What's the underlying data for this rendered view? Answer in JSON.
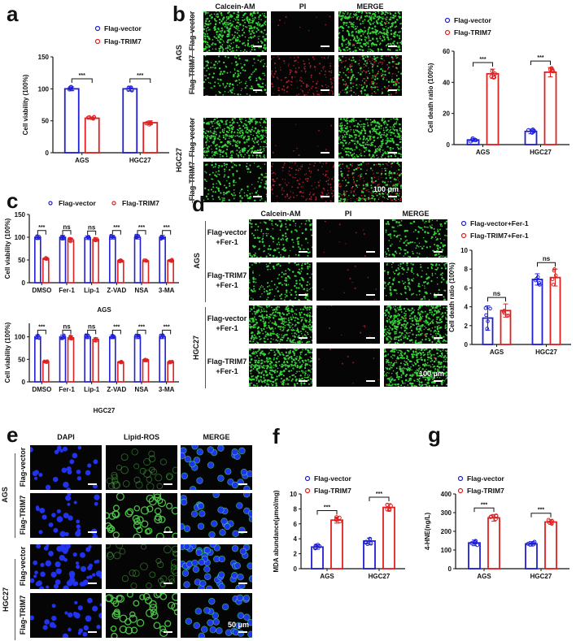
{
  "colors": {
    "vector": "#1f1fd6",
    "trim7": "#e02020",
    "green": "#38d23a",
    "red": "#c8283a",
    "blue": "#2233ee"
  },
  "panels": {
    "a": {
      "letter": "a"
    },
    "b": {
      "letter": "b",
      "columns": [
        "Calcein-AM",
        "PI",
        "MERGE"
      ],
      "groups": [
        "AGS",
        "HGC27"
      ],
      "rows": [
        "Flag-vector",
        "Flag-TRIM7"
      ],
      "scale": "100 μm"
    },
    "c": {
      "letter": "c"
    },
    "d": {
      "letter": "d",
      "columns": [
        "Calcein-AM",
        "PI",
        "MERGE"
      ],
      "groups": [
        "AGS",
        "HGC27"
      ],
      "rows": [
        [
          "Flag-vector",
          "+Fer-1"
        ],
        [
          "Flag-TRIM7",
          "+Fer-1"
        ]
      ],
      "scale": "100 μm"
    },
    "e": {
      "letter": "e",
      "columns": [
        "DAPI",
        "Lipid-ROS",
        "MERGE"
      ],
      "groups": [
        "AGS",
        "HGC27"
      ],
      "rows": [
        "Flag-vector",
        "Flag-TRIM7"
      ],
      "scale": "50 μm"
    },
    "f": {
      "letter": "f"
    },
    "g": {
      "letter": "g"
    }
  },
  "chart_data": [
    {
      "id": "a",
      "type": "bar",
      "title": "",
      "categories": [
        "AGS",
        "HGC27"
      ],
      "series": [
        {
          "name": "Flag-vector",
          "values": [
            100,
            100
          ]
        },
        {
          "name": "Flag-TRIM7",
          "values": [
            54,
            47
          ]
        }
      ],
      "errors": [
        [
          3,
          3
        ],
        [
          2,
          3
        ]
      ],
      "xlabel": "",
      "ylabel": "Cell viability (100%)",
      "ylim": [
        0,
        150
      ],
      "yticks": [
        0,
        50,
        100,
        150
      ],
      "significance": [
        "***",
        "***"
      ],
      "legend": [
        "Flag-vector",
        "Flag-TRIM7"
      ],
      "legend_position": "top-right"
    },
    {
      "id": "b",
      "type": "bar",
      "categories": [
        "AGS",
        "HGC27"
      ],
      "series": [
        {
          "name": "Flag-vector",
          "values": [
            3,
            8.5
          ]
        },
        {
          "name": "Flag-TRIM7",
          "values": [
            45.5,
            46.5
          ]
        }
      ],
      "errors": [
        [
          1,
          1.5
        ],
        [
          3,
          3
        ]
      ],
      "xlabel": "",
      "ylabel": "Cell death ratio (100%)",
      "ylim": [
        0,
        60
      ],
      "yticks": [
        0,
        20,
        40,
        60
      ],
      "significance": [
        "***",
        "***"
      ],
      "legend": [
        "Flag-vector",
        "Flag-TRIM7"
      ],
      "legend_position": "top"
    },
    {
      "id": "c-AGS",
      "type": "bar",
      "categories": [
        "DMSO",
        "Fer-1",
        "Lip-1",
        "Z-VAD",
        "NSA",
        "3-MA"
      ],
      "series": [
        {
          "name": "Flag-vector",
          "values": [
            100,
            100,
            99,
            100,
            100,
            100
          ]
        },
        {
          "name": "Flag-TRIM7",
          "values": [
            53,
            94,
            95,
            48,
            48,
            49
          ]
        }
      ],
      "xlabel": "AGS",
      "ylabel": "Cell viability (100%)",
      "ylim": [
        0,
        150
      ],
      "yticks": [
        0,
        50,
        100,
        150
      ],
      "significance": [
        "***",
        "ns",
        "ns",
        "***",
        "***",
        "***"
      ],
      "legend": [
        "Flag-vector",
        "Flag-TRIM7"
      ],
      "legend_position": "top"
    },
    {
      "id": "c-HGC27",
      "type": "bar",
      "categories": [
        "DMSO",
        "Fer-1",
        "Lip-1",
        "Z-VAD",
        "NSA",
        "3-MA"
      ],
      "series": [
        {
          "name": "Flag-vector",
          "values": [
            100,
            100,
            100,
            100,
            100,
            100
          ]
        },
        {
          "name": "Flag-TRIM7",
          "values": [
            45,
            98,
            94,
            44,
            49,
            44
          ]
        }
      ],
      "xlabel": "HGC27",
      "ylabel": "Cell viability (100%)",
      "ylim": [
        0,
        130
      ],
      "yticks": [
        0,
        50,
        100
      ],
      "significance": [
        "***",
        "ns",
        "ns",
        "***",
        "***",
        "***"
      ]
    },
    {
      "id": "d",
      "type": "bar",
      "categories": [
        "AGS",
        "HGC27"
      ],
      "series": [
        {
          "name": "Flag-vector+Fer-1",
          "values": [
            2.8,
            6.9
          ]
        },
        {
          "name": "Flag-TRIM7+Fer-1",
          "values": [
            3.6,
            7.1
          ]
        }
      ],
      "errors": [
        [
          1.3,
          0.6
        ],
        [
          0.7,
          0.9
        ]
      ],
      "xlabel": "",
      "ylabel": "Cell death ratio (100%)",
      "ylim": [
        0,
        10
      ],
      "yticks": [
        0,
        2,
        4,
        6,
        8,
        10
      ],
      "significance": [
        "ns",
        "ns"
      ],
      "legend": [
        "Flag-vector+Fer-1",
        "Flag-TRIM7+Fer-1"
      ],
      "legend_position": "top"
    },
    {
      "id": "f",
      "type": "bar",
      "categories": [
        "AGS",
        "HGC27"
      ],
      "series": [
        {
          "name": "Flag-vector",
          "values": [
            2.9,
            3.7
          ]
        },
        {
          "name": "Flag-TRIM7",
          "values": [
            6.5,
            8.2
          ]
        }
      ],
      "errors": [
        [
          0.3,
          0.4
        ],
        [
          0.4,
          0.5
        ]
      ],
      "xlabel": "",
      "ylabel": "MDA abundance(μmol/mg)",
      "ylim": [
        0,
        10
      ],
      "yticks": [
        0,
        2,
        4,
        6,
        8,
        10
      ],
      "significance": [
        "***",
        "***"
      ],
      "legend": [
        "Flag-vector",
        "Flag-TRIM7"
      ],
      "legend_position": "top"
    },
    {
      "id": "g",
      "type": "bar",
      "categories": [
        "AGS",
        "HGC27"
      ],
      "series": [
        {
          "name": "Flag-vector",
          "values": [
            138,
            133
          ]
        },
        {
          "name": "Flag-TRIM7",
          "values": [
            272,
            250
          ]
        }
      ],
      "errors": [
        [
          15,
          12
        ],
        [
          18,
          12
        ]
      ],
      "xlabel": "",
      "ylabel": "4-HNE(ng/L)",
      "ylim": [
        0,
        400
      ],
      "yticks": [
        0,
        100,
        200,
        300,
        400
      ],
      "significance": [
        "***",
        "***"
      ],
      "legend": [
        "Flag-vector",
        "Flag-TRIM7"
      ],
      "legend_position": "top"
    }
  ]
}
